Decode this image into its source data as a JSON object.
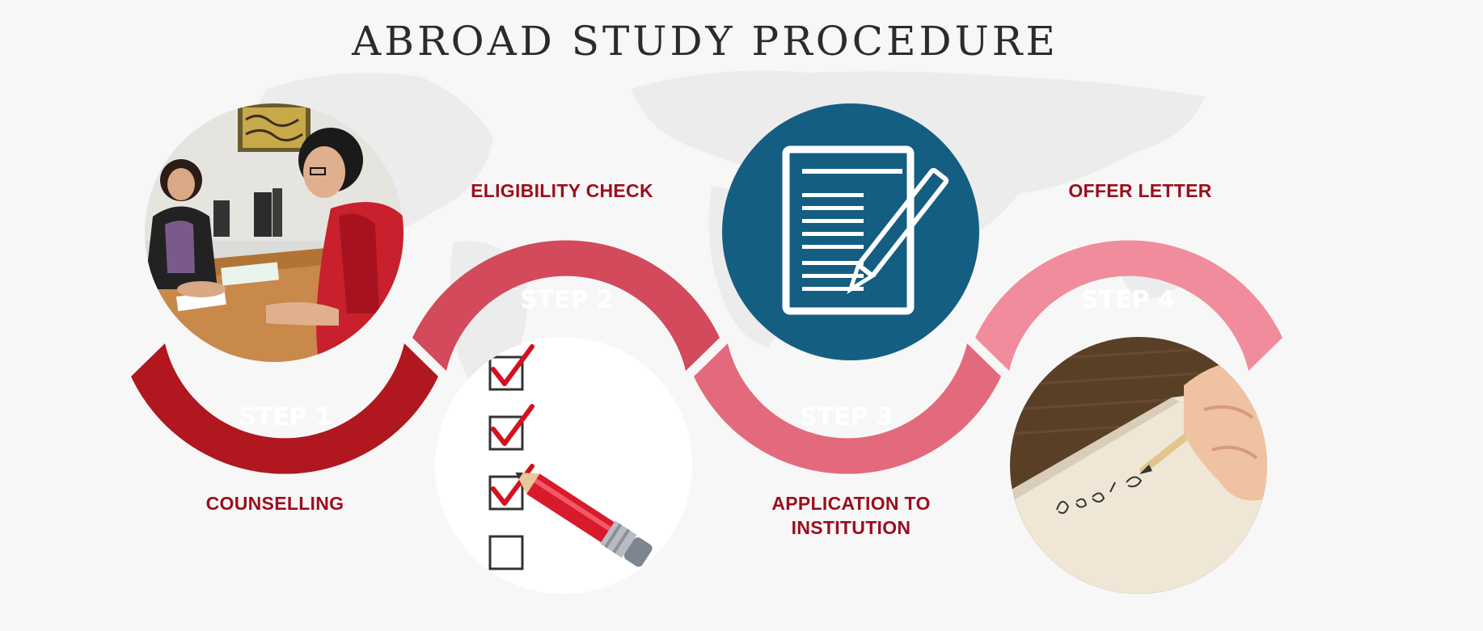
{
  "title": "ABROAD STUDY PROCEDURE",
  "steps": [
    {
      "label": "STEP 1",
      "caption": "COUNSELLING",
      "color": "#b0171f",
      "image": "counselling-photo"
    },
    {
      "label": "STEP 2",
      "caption": "ELIGIBILITY CHECK",
      "color": "#d24a5b",
      "image": "checklist-icon"
    },
    {
      "label": "STEP 3",
      "caption_lines": [
        "APPLICATION TO",
        "INSTITUTION"
      ],
      "color": "#e26a7c",
      "image": "document-pencil-icon"
    },
    {
      "label": "STEP 4",
      "caption": "OFFER LETTER",
      "color": "#f08c9c",
      "image": "letter-writing-photo"
    }
  ],
  "colors": {
    "caption": "#9b0e1d",
    "doc_circle": "#145e82",
    "background": "#f7f7f7"
  }
}
